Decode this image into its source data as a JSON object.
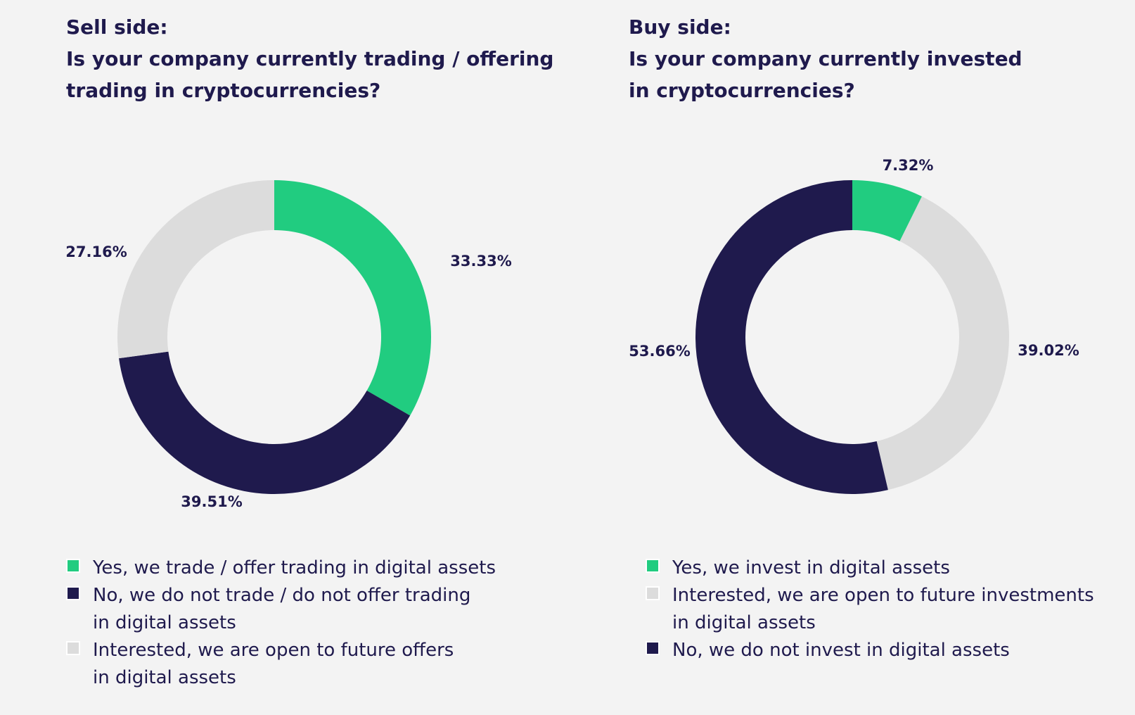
{
  "colors": {
    "green": "#21cc80",
    "navy": "#1f1a4d",
    "gray": "#dcdcdc",
    "text": "#1f1a4d",
    "background": "#f3f3f3"
  },
  "chart_data": [
    {
      "type": "pie",
      "variant": "donut",
      "title_label": "Sell side:",
      "title_lines": [
        "Is your company currently trading / offering",
        "trading in cryptocurrencies?"
      ],
      "slices": [
        {
          "label": "Yes, we trade / offer trading in digital assets",
          "value": 33.33,
          "display": "33.33%",
          "color": "#21cc80"
        },
        {
          "label": "No, we do not trade / do not offer trading in digital assets",
          "value": 39.51,
          "display": "39.51%",
          "color": "#1f1a4d"
        },
        {
          "label": "Interested, we are open to future offers in digital assets",
          "value": 27.16,
          "display": "27.16%",
          "color": "#dcdcdc"
        }
      ],
      "legend": [
        {
          "lines": [
            "Yes, we trade / offer trading in digital assets"
          ],
          "color": "#21cc80"
        },
        {
          "lines": [
            "No, we do not trade / do not offer trading",
            "in digital assets"
          ],
          "color": "#1f1a4d"
        },
        {
          "lines": [
            "Interested, we are open to future offers",
            "in digital assets"
          ],
          "color": "#dcdcdc"
        }
      ]
    },
    {
      "type": "pie",
      "variant": "donut",
      "title_label": "Buy side:",
      "title_lines": [
        "Is your company currently invested",
        "in cryptocurrencies?"
      ],
      "slices": [
        {
          "label": "Yes, we invest in digital assets",
          "value": 7.32,
          "display": "7.32%",
          "color": "#21cc80"
        },
        {
          "label": "Interested, we are open to future investments in digital assets",
          "value": 39.02,
          "display": "39.02%",
          "color": "#dcdcdc"
        },
        {
          "label": "No, we do not invest in digital assets",
          "value": 53.66,
          "display": "53.66%",
          "color": "#1f1a4d"
        }
      ],
      "legend": [
        {
          "lines": [
            "Yes, we invest in digital assets"
          ],
          "color": "#21cc80"
        },
        {
          "lines": [
            "Interested, we are open to future investments",
            "in digital assets"
          ],
          "color": "#dcdcdc"
        },
        {
          "lines": [
            "No, we do not invest in digital assets"
          ],
          "color": "#1f1a4d"
        }
      ]
    }
  ]
}
